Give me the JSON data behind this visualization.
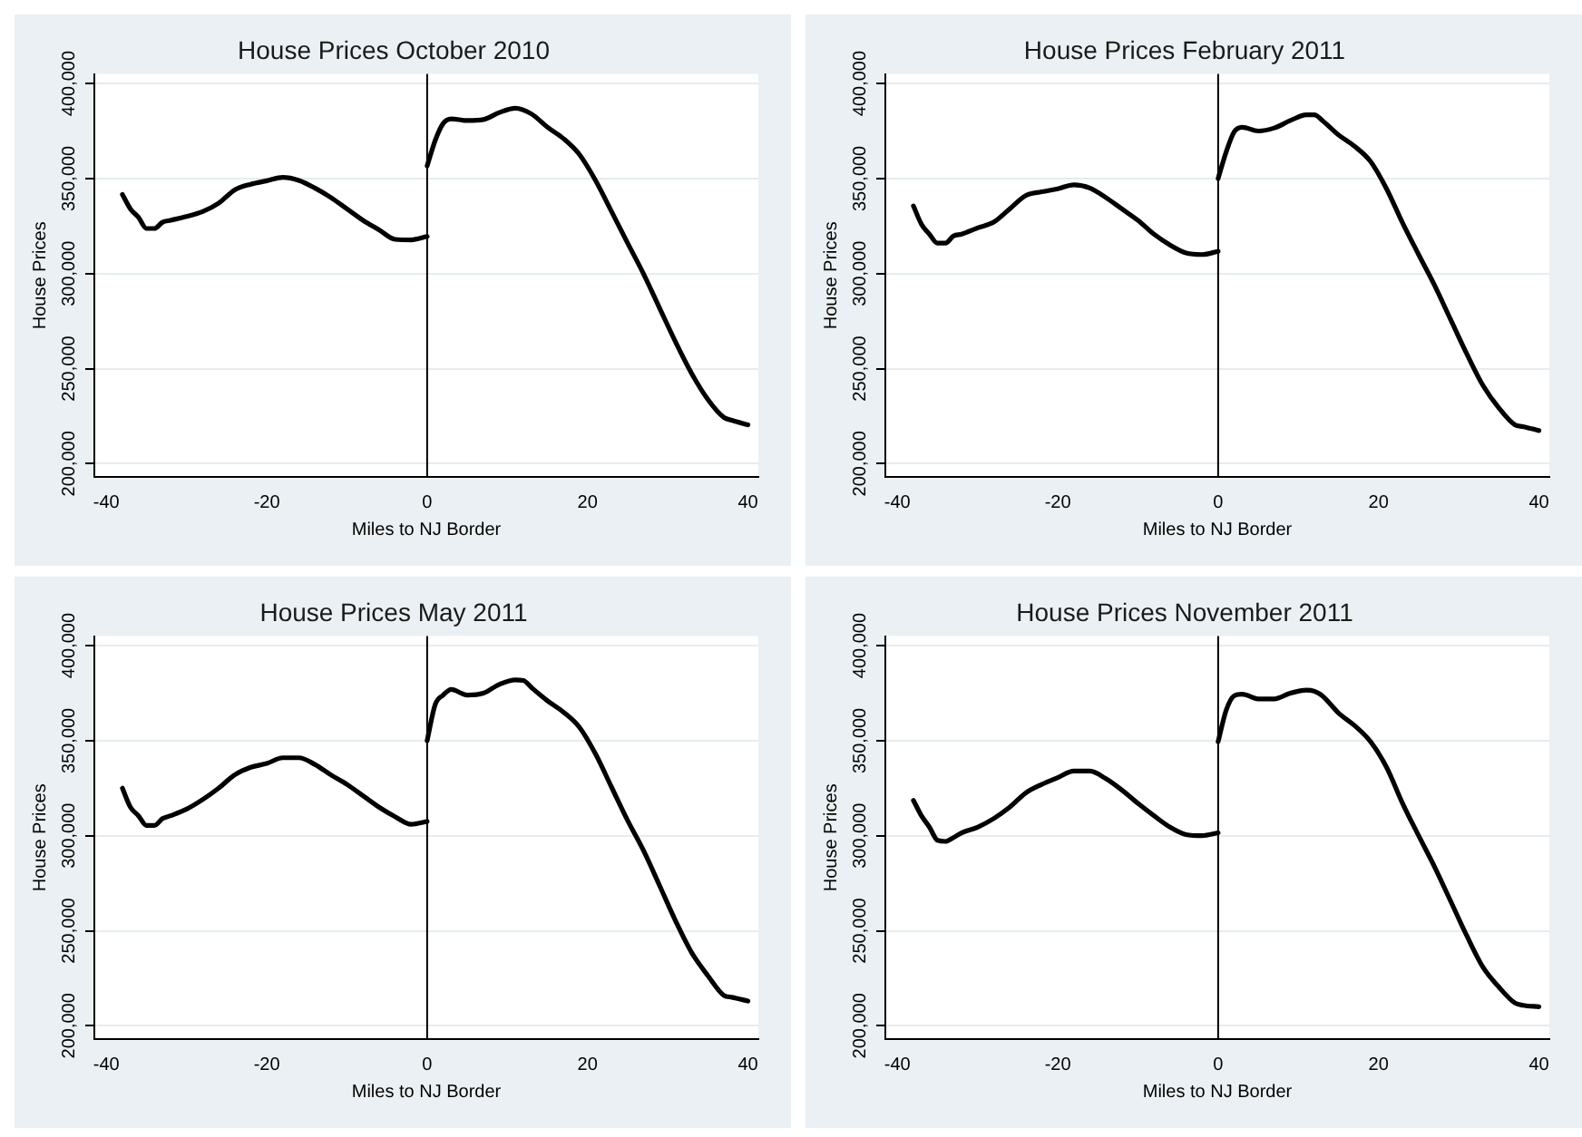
{
  "chart_data": [
    {
      "type": "line",
      "title": "House Prices October 2010",
      "xlabel": "Miles to NJ Border",
      "ylabel": "House Prices",
      "xlim": [
        -41.5,
        41.3
      ],
      "xticks": [
        -40,
        -20,
        0,
        20,
        40
      ],
      "ylim": [
        193000,
        405000
      ],
      "yticks": [
        {
          "value": 200000,
          "label": "200,000"
        },
        {
          "value": 250000,
          "label": "250,000"
        },
        {
          "value": 300000,
          "label": "300,000"
        },
        {
          "value": 350000,
          "label": "350,000"
        },
        {
          "value": 400000,
          "label": "400,000"
        }
      ],
      "grid": "y",
      "ref_lines": [
        {
          "axis": "x",
          "value": 0,
          "color": "#000000"
        }
      ],
      "series": [
        {
          "color": "#000000",
          "x": [
            -38,
            -37,
            -36,
            -35,
            -34,
            -33,
            -32,
            -30,
            -28,
            -26,
            -24,
            -22,
            -20,
            -18,
            -16,
            -14,
            -12,
            -10,
            -8,
            -6,
            -4,
            -2,
            0
          ],
          "values": [
            341600,
            334000,
            329600,
            323700,
            323700,
            327000,
            328000,
            330000,
            332600,
            337000,
            344000,
            347000,
            348800,
            350600,
            349000,
            345000,
            340000,
            334000,
            328000,
            323000,
            318000,
            317700,
            319500
          ]
        },
        {
          "color": "#000000",
          "x": [
            0,
            1,
            2,
            3,
            5,
            7,
            9,
            11,
            13,
            15,
            17,
            19,
            21,
            23,
            25,
            27,
            29,
            31,
            33,
            35,
            37,
            38,
            40
          ],
          "values": [
            356600,
            370000,
            379000,
            381400,
            380500,
            381000,
            384700,
            387000,
            384000,
            377000,
            371000,
            362600,
            349000,
            332600,
            316000,
            299700,
            281700,
            263800,
            247300,
            233800,
            224300,
            222800,
            220400
          ]
        }
      ]
    },
    {
      "type": "line",
      "title": "House Prices February 2011",
      "xlabel": "Miles to NJ Border",
      "ylabel": "House Prices",
      "xlim": [
        -41.5,
        41.3
      ],
      "xticks": [
        -40,
        -20,
        0,
        20,
        40
      ],
      "ylim": [
        193000,
        405000
      ],
      "yticks": [
        {
          "value": 200000,
          "label": "200,000"
        },
        {
          "value": 250000,
          "label": "250,000"
        },
        {
          "value": 300000,
          "label": "300,000"
        },
        {
          "value": 350000,
          "label": "350,000"
        },
        {
          "value": 400000,
          "label": "400,000"
        }
      ],
      "grid": "y",
      "ref_lines": [
        {
          "axis": "x",
          "value": 0,
          "color": "#000000"
        }
      ],
      "series": [
        {
          "color": "#000000",
          "x": [
            -38,
            -37,
            -36,
            -35,
            -34,
            -33,
            -32,
            -30,
            -28,
            -26,
            -24,
            -22,
            -20,
            -18,
            -16,
            -14,
            -12,
            -10,
            -8,
            -6,
            -4,
            -2,
            0
          ],
          "values": [
            335600,
            326000,
            320700,
            316000,
            316000,
            319800,
            320700,
            324000,
            327000,
            334000,
            341000,
            343000,
            344600,
            346700,
            345000,
            340000,
            334000,
            328000,
            320700,
            315000,
            310800,
            310000,
            311700
          ]
        },
        {
          "color": "#000000",
          "x": [
            0,
            1,
            2,
            3,
            5,
            7,
            9,
            11,
            12,
            13,
            15,
            17,
            19,
            21,
            23,
            25,
            27,
            29,
            31,
            33,
            35,
            37,
            38,
            40
          ],
          "values": [
            350000,
            364000,
            374600,
            377000,
            375000,
            376600,
            380500,
            383500,
            383500,
            380500,
            373000,
            367000,
            359000,
            344600,
            326600,
            310000,
            293700,
            275700,
            257800,
            241300,
            229300,
            220400,
            219500,
            217400
          ]
        }
      ]
    },
    {
      "type": "line",
      "title": "House Prices May 2011",
      "xlabel": "Miles to NJ Border",
      "ylabel": "House Prices",
      "xlim": [
        -41.5,
        41.3
      ],
      "xticks": [
        -40,
        -20,
        0,
        20,
        40
      ],
      "ylim": [
        193000,
        405000
      ],
      "yticks": [
        {
          "value": 200000,
          "label": "200,000"
        },
        {
          "value": 250000,
          "label": "250,000"
        },
        {
          "value": 300000,
          "label": "300,000"
        },
        {
          "value": 350000,
          "label": "350,000"
        },
        {
          "value": 400000,
          "label": "400,000"
        }
      ],
      "grid": "y",
      "ref_lines": [
        {
          "axis": "x",
          "value": 0,
          "color": "#000000"
        }
      ],
      "series": [
        {
          "color": "#000000",
          "x": [
            -38,
            -37,
            -36,
            -35,
            -34,
            -33,
            -32,
            -30,
            -28,
            -26,
            -24,
            -22,
            -20,
            -18,
            -16,
            -14,
            -12,
            -10,
            -8,
            -6,
            -4,
            -2,
            0
          ],
          "values": [
            325000,
            315000,
            310500,
            305400,
            305400,
            309000,
            310500,
            314000,
            319000,
            325000,
            332000,
            336000,
            338000,
            341000,
            341000,
            337500,
            332000,
            327000,
            321000,
            315000,
            310000,
            306000,
            307500
          ]
        },
        {
          "color": "#000000",
          "x": [
            0,
            1,
            2,
            3,
            5,
            7,
            9,
            11,
            12,
            13,
            15,
            17,
            19,
            21,
            23,
            25,
            27,
            29,
            31,
            33,
            35,
            37,
            38,
            40
          ],
          "values": [
            350000,
            369000,
            374000,
            377000,
            374000,
            375000,
            379600,
            382000,
            381700,
            378000,
            371000,
            365000,
            357000,
            343000,
            325500,
            308000,
            292000,
            273600,
            255000,
            238400,
            226400,
            216000,
            215000,
            213000
          ]
        }
      ]
    },
    {
      "type": "line",
      "title": "House Prices November 2011",
      "xlabel": "Miles to NJ Border",
      "ylabel": "House Prices",
      "xlim": [
        -41.5,
        41.3
      ],
      "xticks": [
        -40,
        -20,
        0,
        20,
        40
      ],
      "ylim": [
        193000,
        405000
      ],
      "yticks": [
        {
          "value": 200000,
          "label": "200,000"
        },
        {
          "value": 250000,
          "label": "250,000"
        },
        {
          "value": 300000,
          "label": "300,000"
        },
        {
          "value": 350000,
          "label": "350,000"
        },
        {
          "value": 400000,
          "label": "400,000"
        }
      ],
      "grid": "y",
      "ref_lines": [
        {
          "axis": "x",
          "value": 0,
          "color": "#000000"
        }
      ],
      "series": [
        {
          "color": "#000000",
          "x": [
            -38,
            -37,
            -36,
            -35,
            -34,
            -33,
            -32,
            -30,
            -28,
            -26,
            -24,
            -22,
            -20,
            -18,
            -16,
            -14,
            -12,
            -10,
            -8,
            -6,
            -4,
            -2,
            0
          ],
          "values": [
            318600,
            310500,
            304500,
            297600,
            297000,
            299000,
            301500,
            304500,
            309000,
            315000,
            322500,
            327000,
            330600,
            334000,
            334000,
            330000,
            324000,
            317000,
            310500,
            304500,
            300600,
            300000,
            301500
          ]
        },
        {
          "color": "#000000",
          "x": [
            0,
            1,
            2,
            3,
            5,
            7,
            9,
            11,
            12,
            13,
            15,
            17,
            19,
            21,
            23,
            25,
            27,
            29,
            31,
            33,
            35,
            37,
            38,
            40
          ],
          "values": [
            349500,
            366000,
            373600,
            374500,
            372000,
            372000,
            375000,
            376600,
            376000,
            373600,
            364600,
            358000,
            349500,
            336000,
            317000,
            300000,
            283500,
            265500,
            247400,
            231000,
            220400,
            212000,
            210800,
            210000
          ]
        }
      ]
    }
  ]
}
